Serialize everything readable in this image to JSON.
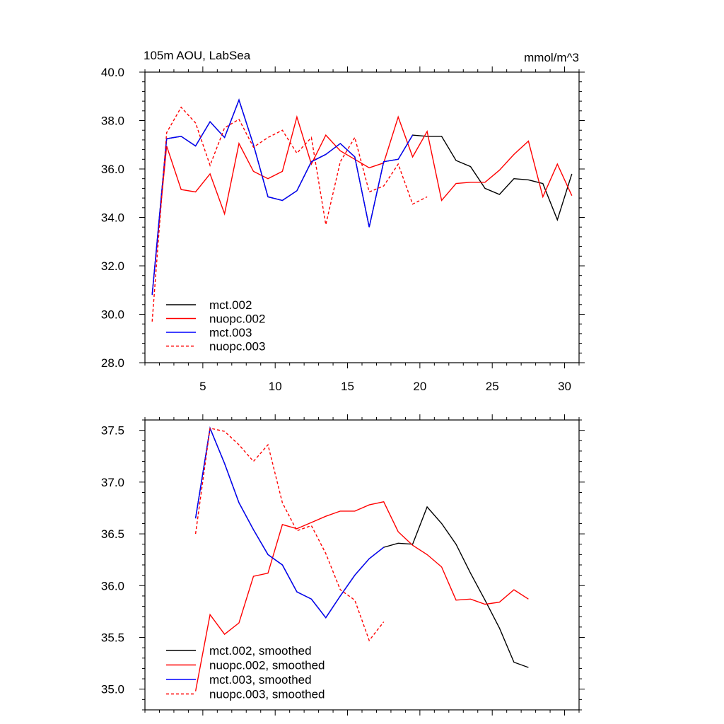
{
  "title_left": "105m AOU, LabSea",
  "title_right": "mmol/m^3",
  "chart_data": [
    {
      "type": "line",
      "title": "105m AOU, LabSea",
      "units": "mmol/m^3",
      "xlim": [
        1,
        31
      ],
      "ylim": [
        28,
        40
      ],
      "x_ticks": [
        5,
        10,
        15,
        20,
        25,
        30
      ],
      "y_ticks": [
        28,
        30,
        32,
        34,
        36,
        38,
        40
      ],
      "y_tick_labels": [
        "28.0",
        "30.0",
        "32.0",
        "34.0",
        "36.0",
        "38.0",
        "40.0"
      ],
      "grid": false,
      "legend_position": "bottom-left",
      "series": [
        {
          "name": "mct.002",
          "color": "#000000",
          "dash": "solid",
          "x": [
            1.5,
            2.5,
            3.5,
            4.5,
            5.5,
            6.5,
            7.5,
            8.5,
            9.5,
            10.5,
            11.5,
            12.5,
            13.5,
            14.5,
            15.5,
            16.5,
            17.5,
            18.5,
            19.5,
            20.5,
            21.5,
            22.5,
            23.5,
            24.5,
            25.5,
            26.5,
            27.5,
            28.5,
            29.5,
            30.5
          ],
          "y": [
            30.8,
            37.25,
            37.35,
            36.95,
            37.95,
            37.3,
            38.85,
            37.0,
            34.85,
            34.7,
            35.1,
            36.3,
            36.6,
            37.05,
            36.5,
            33.6,
            36.3,
            36.4,
            37.4,
            37.35,
            37.35,
            36.35,
            36.1,
            35.2,
            34.95,
            35.6,
            35.55,
            35.4,
            33.9,
            35.8
          ]
        },
        {
          "name": "nuopc.002",
          "color": "#ff0000",
          "dash": "solid",
          "x": [
            1.5,
            2.5,
            3.5,
            4.5,
            5.5,
            6.5,
            7.5,
            8.5,
            9.5,
            10.5,
            11.5,
            12.5,
            13.5,
            14.5,
            15.5,
            16.5,
            17.5,
            18.5,
            19.5,
            20.5,
            21.5,
            22.5,
            23.5,
            24.5,
            25.5,
            26.5,
            27.5,
            28.5,
            29.5,
            30.5
          ],
          "y": [
            30.8,
            36.95,
            35.15,
            35.05,
            35.8,
            34.15,
            37.05,
            35.9,
            35.6,
            35.9,
            38.15,
            36.2,
            37.4,
            36.75,
            36.4,
            36.05,
            36.25,
            38.15,
            36.5,
            37.55,
            34.7,
            35.4,
            35.45,
            35.45,
            35.95,
            36.6,
            37.15,
            34.85,
            36.2,
            34.9
          ]
        },
        {
          "name": "mct.003",
          "color": "#0000ff",
          "dash": "solid",
          "x": [
            1.5,
            2.5,
            3.5,
            4.5,
            5.5,
            6.5,
            7.5,
            8.5,
            9.5,
            10.5,
            11.5,
            12.5,
            13.5,
            14.5,
            15.5,
            16.5,
            17.5,
            18.5,
            19.5
          ],
          "y": [
            30.8,
            37.25,
            37.35,
            36.95,
            37.95,
            37.3,
            38.85,
            37.0,
            34.85,
            34.7,
            35.1,
            36.3,
            36.6,
            37.05,
            36.5,
            33.6,
            36.3,
            36.4,
            37.4
          ]
        },
        {
          "name": "nuopc.003",
          "color": "#ff0000",
          "dash": "dashed",
          "x": [
            1.5,
            2.5,
            3.5,
            4.5,
            5.5,
            6.5,
            7.5,
            8.5,
            9.5,
            10.5,
            11.5,
            12.5,
            13.5,
            14.5,
            15.5,
            16.5,
            17.5,
            18.5,
            19.5,
            20.5
          ],
          "y": [
            29.7,
            37.5,
            38.55,
            37.9,
            36.15,
            37.7,
            38.05,
            36.9,
            37.3,
            37.6,
            36.65,
            37.3,
            33.7,
            36.3,
            37.3,
            35.05,
            35.3,
            36.2,
            34.55,
            34.85
          ]
        }
      ]
    },
    {
      "type": "line",
      "xlim": [
        1,
        31
      ],
      "ylim": [
        34.8,
        37.6
      ],
      "x_ticks": [
        5,
        10,
        15,
        20,
        25,
        30
      ],
      "y_ticks": [
        35.0,
        35.5,
        36.0,
        36.5,
        37.0,
        37.5
      ],
      "y_tick_labels": [
        "35.0",
        "35.5",
        "36.0",
        "36.5",
        "37.0",
        "37.5"
      ],
      "grid": false,
      "legend_position": "bottom-left",
      "series": [
        {
          "name": "mct.002, smoothed",
          "color": "#000000",
          "dash": "solid",
          "x": [
            4.5,
            5.5,
            6.5,
            7.5,
            8.5,
            9.5,
            10.5,
            11.5,
            12.5,
            13.5,
            14.5,
            15.5,
            16.5,
            17.5,
            18.5,
            19.5,
            20.5,
            21.5,
            22.5,
            23.5,
            24.5,
            25.5,
            26.5,
            27.5
          ],
          "y": [
            36.65,
            37.52,
            37.18,
            36.8,
            36.54,
            36.3,
            36.2,
            35.94,
            35.87,
            35.69,
            35.9,
            36.1,
            36.26,
            36.37,
            36.41,
            36.4,
            36.76,
            36.6,
            36.4,
            36.12,
            35.86,
            35.59,
            35.26,
            35.21
          ]
        },
        {
          "name": "nuopc.002, smoothed",
          "color": "#ff0000",
          "dash": "solid",
          "x": [
            4.5,
            5.5,
            6.5,
            7.5,
            8.5,
            9.5,
            10.5,
            11.5,
            12.5,
            13.5,
            14.5,
            15.5,
            16.5,
            17.5,
            18.5,
            19.5,
            20.5,
            21.5,
            22.5,
            23.5,
            24.5,
            25.5,
            26.5,
            27.5
          ],
          "y": [
            34.98,
            35.72,
            35.53,
            35.64,
            36.09,
            36.12,
            36.59,
            36.55,
            36.61,
            36.67,
            36.72,
            36.72,
            36.78,
            36.81,
            36.52,
            36.39,
            36.3,
            36.18,
            35.86,
            35.87,
            35.82,
            35.84,
            35.96,
            35.87
          ]
        },
        {
          "name": "mct.003, smoothed",
          "color": "#0000ff",
          "dash": "solid",
          "x": [
            4.5,
            5.5,
            6.5,
            7.5,
            8.5,
            9.5,
            10.5,
            11.5,
            12.5,
            13.5,
            14.5,
            15.5,
            16.5,
            17.5
          ],
          "y": [
            36.65,
            37.52,
            37.18,
            36.8,
            36.54,
            36.3,
            36.2,
            35.94,
            35.87,
            35.69,
            35.9,
            36.1,
            36.26,
            36.37
          ]
        },
        {
          "name": "nuopc.003, smoothed",
          "color": "#ff0000",
          "dash": "dashed",
          "x": [
            4.5,
            5.5,
            6.5,
            7.5,
            8.5,
            9.5,
            10.5,
            11.5,
            12.5,
            13.5,
            14.5,
            15.5,
            16.5,
            17.5
          ],
          "y": [
            36.5,
            37.52,
            37.49,
            37.36,
            37.2,
            37.36,
            36.8,
            36.53,
            36.58,
            36.31,
            35.96,
            35.86,
            35.47,
            35.65
          ]
        }
      ]
    }
  ]
}
